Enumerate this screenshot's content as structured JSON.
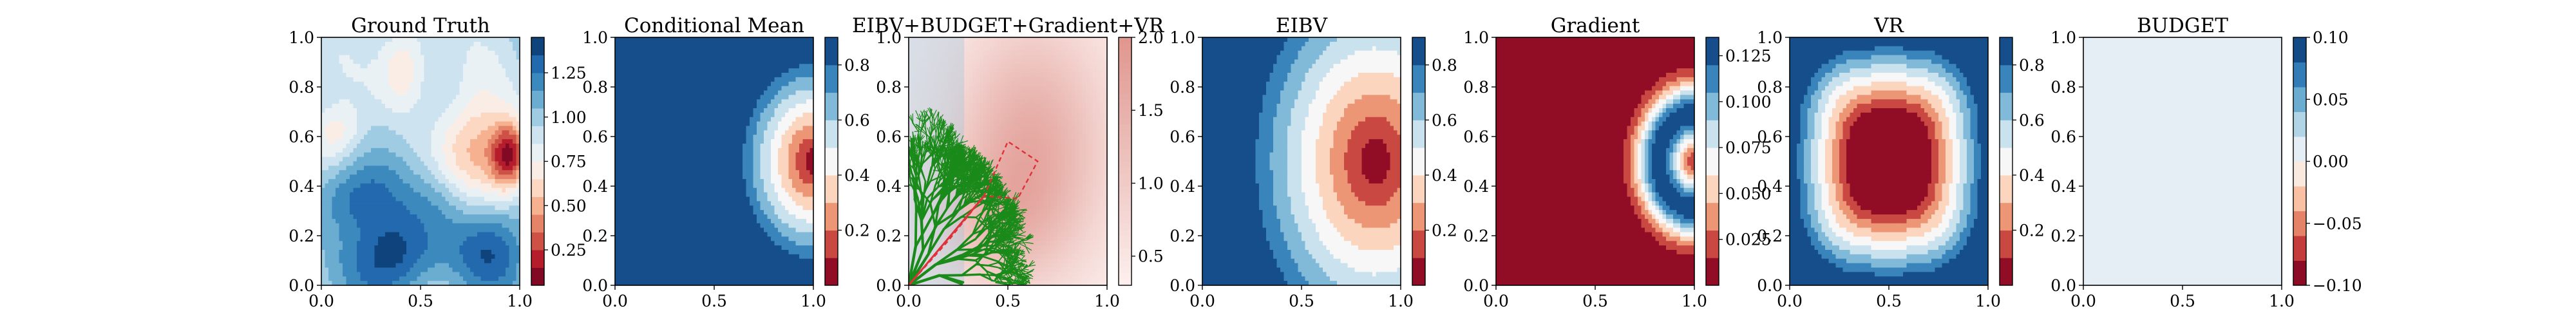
{
  "figure": {
    "panels": [
      {
        "id": "ground-truth",
        "title": "Ground Truth",
        "field": "ground_truth",
        "colorbar": {
          "min": 0.05,
          "max": 1.45,
          "levels": 14,
          "ticks": [
            "0.25",
            "0.50",
            "0.75",
            "1.00",
            "1.25"
          ],
          "tick_values": [
            0.25,
            0.5,
            0.75,
            1.0,
            1.25
          ]
        }
      },
      {
        "id": "conditional-mean",
        "title": "Conditional Mean",
        "field": "conditional_mean",
        "colorbar": {
          "min": 0.0,
          "max": 0.9,
          "levels": 9,
          "ticks": [
            "0.2",
            "0.4",
            "0.6",
            "0.8"
          ],
          "tick_values": [
            0.2,
            0.4,
            0.6,
            0.8
          ]
        }
      },
      {
        "id": "combined",
        "title": "EIBV+BUDGET+Gradient+VR",
        "field": "combined",
        "colorbar": {
          "min": 0.3,
          "max": 2.0,
          "levels": 0,
          "ticks": [
            "0.5",
            "1.0",
            "1.5",
            "2.0"
          ],
          "tick_values": [
            0.5,
            1.0,
            1.5,
            2.0
          ]
        },
        "overlay": true
      },
      {
        "id": "eibv",
        "title": "EIBV",
        "field": "eibv",
        "colorbar": {
          "min": 0.0,
          "max": 0.9,
          "levels": 9,
          "ticks": [
            "0.2",
            "0.4",
            "0.6",
            "0.8"
          ],
          "tick_values": [
            0.2,
            0.4,
            0.6,
            0.8
          ]
        }
      },
      {
        "id": "gradient",
        "title": "Gradient",
        "field": "gradient",
        "colorbar": {
          "min": 0.0,
          "max": 0.135,
          "levels": 9,
          "ticks": [
            "0.025",
            "0.050",
            "0.075",
            "0.100",
            "0.125"
          ],
          "tick_values": [
            0.025,
            0.05,
            0.075,
            0.1,
            0.125
          ]
        }
      },
      {
        "id": "vr",
        "title": "VR",
        "field": "vr",
        "colorbar": {
          "min": 0.0,
          "max": 0.9,
          "levels": 9,
          "ticks": [
            "0.2",
            "0.4",
            "0.6",
            "0.8"
          ],
          "tick_values": [
            0.2,
            0.4,
            0.6,
            0.8
          ]
        }
      },
      {
        "id": "budget",
        "title": "BUDGET",
        "field": "budget",
        "colorbar": {
          "min": -0.1,
          "max": 0.1,
          "levels": 10,
          "ticks": [
            "−0.10",
            "−0.05",
            "0.00",
            "0.05",
            "0.10"
          ],
          "tick_values": [
            -0.1,
            -0.05,
            0.0,
            0.05,
            0.1
          ]
        }
      }
    ],
    "x_ticks": [
      "0.0",
      "0.5",
      "1.0"
    ],
    "y_ticks": [
      "0.0",
      "0.2",
      "0.4",
      "0.6",
      "0.8",
      "1.0"
    ],
    "colormap": "RdBu",
    "colors": {
      "dark_red": "#67001f",
      "dark_blue": "#053061",
      "tree_green": "#1a8a1a",
      "path_red": "#e0303a"
    }
  },
  "chart_data": [
    {
      "type": "heatmap",
      "title": "Ground Truth",
      "xlim": [
        0,
        1
      ],
      "ylim": [
        0,
        1
      ],
      "colorbar_range": [
        0.05,
        1.45
      ],
      "features": [
        {
          "kind": "low",
          "x": 0.92,
          "y": 0.52,
          "value": 0.1
        },
        {
          "kind": "low",
          "x": 0.42,
          "y": 0.9,
          "value": 0.5
        },
        {
          "kind": "low",
          "x": 0.08,
          "y": 0.62,
          "value": 0.55
        },
        {
          "kind": "high",
          "x": 0.4,
          "y": 0.12,
          "value": 1.4
        },
        {
          "kind": "high",
          "x": 0.85,
          "y": 0.15,
          "value": 1.25
        }
      ]
    },
    {
      "type": "heatmap",
      "title": "Conditional Mean",
      "xlim": [
        0,
        1
      ],
      "ylim": [
        0,
        1
      ],
      "colorbar_range": [
        0.0,
        0.9
      ],
      "features": [
        {
          "kind": "low",
          "x": 1.0,
          "y": 0.5,
          "value": 0.0
        }
      ]
    },
    {
      "type": "heatmap",
      "title": "EIBV+BUDGET+Gradient+VR",
      "xlim": [
        0,
        1
      ],
      "ylim": [
        0,
        1
      ],
      "colorbar_range": [
        0.3,
        2.0
      ],
      "features": [
        {
          "kind": "high",
          "x": 0.6,
          "y": 0.55,
          "value": 2.0
        }
      ],
      "path": [
        [
          0.0,
          0.0
        ],
        [
          0.2,
          0.18
        ],
        [
          0.38,
          0.36
        ],
        [
          0.5,
          0.58
        ],
        [
          0.65,
          0.5
        ],
        [
          0.55,
          0.35
        ],
        [
          0.38,
          0.36
        ]
      ]
    },
    {
      "type": "heatmap",
      "title": "EIBV",
      "xlim": [
        0,
        1
      ],
      "ylim": [
        0,
        1
      ],
      "colorbar_range": [
        0.0,
        0.9
      ],
      "features": [
        {
          "kind": "low",
          "x": 0.85,
          "y": 0.5,
          "value": 0.0
        }
      ]
    },
    {
      "type": "heatmap",
      "title": "Gradient",
      "xlim": [
        0,
        1
      ],
      "ylim": [
        0,
        1
      ],
      "colorbar_range": [
        0.0,
        0.135
      ],
      "features": [
        {
          "kind": "ring-high",
          "x": 1.0,
          "y": 0.5,
          "radius": 0.22,
          "value": 0.13
        }
      ]
    },
    {
      "type": "heatmap",
      "title": "VR",
      "xlim": [
        0,
        1
      ],
      "ylim": [
        0,
        1
      ],
      "colorbar_range": [
        0.0,
        0.9
      ],
      "features": [
        {
          "kind": "low",
          "x": 0.5,
          "y": 0.5,
          "value": 0.0
        }
      ]
    },
    {
      "type": "heatmap",
      "title": "BUDGET",
      "xlim": [
        0,
        1
      ],
      "ylim": [
        0,
        1
      ],
      "colorbar_range": [
        -0.1,
        0.1
      ],
      "features": [
        {
          "kind": "uniform",
          "value": 0.0
        }
      ]
    }
  ]
}
